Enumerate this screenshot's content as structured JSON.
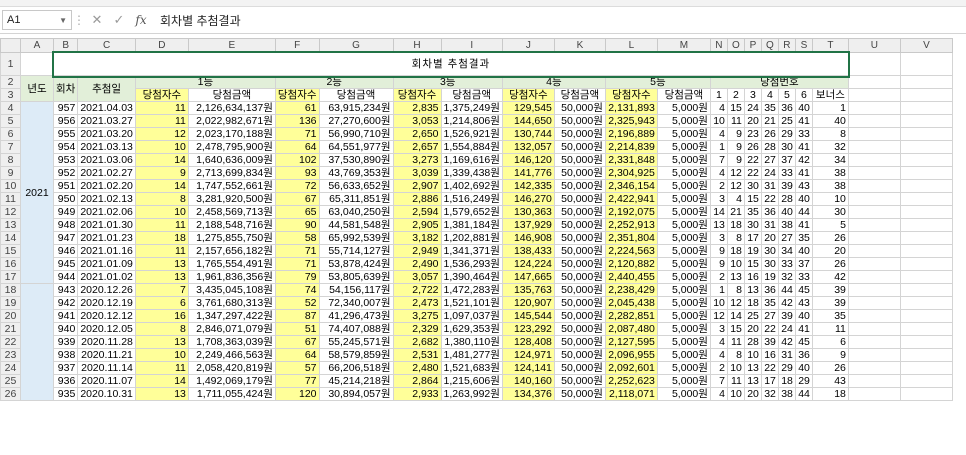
{
  "formula_bar": {
    "cell_ref": "A1",
    "content": "회차별 추첨결과"
  },
  "columns": [
    "A",
    "B",
    "C",
    "D",
    "E",
    "F",
    "G",
    "H",
    "I",
    "J",
    "K",
    "L",
    "M",
    "N",
    "O",
    "P",
    "Q",
    "R",
    "S",
    "T",
    "U",
    "V"
  ],
  "title": "회차별 추첨결과",
  "headers": {
    "year": "년도",
    "round": "회차",
    "date": "추첨일",
    "p1": "1등",
    "p2": "2등",
    "p3": "3등",
    "p4": "4등",
    "p5": "5등",
    "nums": "당첨번호",
    "winners": "당첨자수",
    "amount": "당첨금액",
    "n": [
      "1",
      "2",
      "3",
      "4",
      "5",
      "6"
    ],
    "bonus": "보너스"
  },
  "year_2021": "2021",
  "row_numbers": [
    "1",
    "2",
    "3",
    "4",
    "5",
    "6",
    "7",
    "8",
    "9",
    "10",
    "11",
    "12",
    "13",
    "14",
    "15",
    "16",
    "17",
    "18",
    "19",
    "20",
    "21",
    "22",
    "23",
    "24",
    "25",
    "26"
  ],
  "rows": [
    {
      "round": "957",
      "date": "2021.04.03",
      "w1": "11",
      "a1": "2,126,634,137원",
      "w2": "61",
      "a2": "63,915,234원",
      "w3": "2,835",
      "a3": "1,375,249원",
      "w4": "129,545",
      "a4": "50,000원",
      "w5": "2,131,893",
      "a5": "5,000원",
      "n": [
        "4",
        "15",
        "24",
        "35",
        "36",
        "40"
      ],
      "b": "1"
    },
    {
      "round": "956",
      "date": "2021.03.27",
      "w1": "11",
      "a1": "2,022,982,671원",
      "w2": "136",
      "a2": "27,270,600원",
      "w3": "3,053",
      "a3": "1,214,806원",
      "w4": "144,650",
      "a4": "50,000원",
      "w5": "2,325,943",
      "a5": "5,000원",
      "n": [
        "10",
        "11",
        "20",
        "21",
        "25",
        "41"
      ],
      "b": "40"
    },
    {
      "round": "955",
      "date": "2021.03.20",
      "w1": "12",
      "a1": "2,023,170,188원",
      "w2": "71",
      "a2": "56,990,710원",
      "w3": "2,650",
      "a3": "1,526,921원",
      "w4": "130,744",
      "a4": "50,000원",
      "w5": "2,196,889",
      "a5": "5,000원",
      "n": [
        "4",
        "9",
        "23",
        "26",
        "29",
        "33"
      ],
      "b": "8"
    },
    {
      "round": "954",
      "date": "2021.03.13",
      "w1": "10",
      "a1": "2,478,795,900원",
      "w2": "64",
      "a2": "64,551,977원",
      "w3": "2,657",
      "a3": "1,554,884원",
      "w4": "132,057",
      "a4": "50,000원",
      "w5": "2,214,839",
      "a5": "5,000원",
      "n": [
        "1",
        "9",
        "26",
        "28",
        "30",
        "41"
      ],
      "b": "32"
    },
    {
      "round": "953",
      "date": "2021.03.06",
      "w1": "14",
      "a1": "1,640,636,009원",
      "w2": "102",
      "a2": "37,530,890원",
      "w3": "3,273",
      "a3": "1,169,616원",
      "w4": "146,120",
      "a4": "50,000원",
      "w5": "2,331,848",
      "a5": "5,000원",
      "n": [
        "7",
        "9",
        "22",
        "27",
        "37",
        "42"
      ],
      "b": "34"
    },
    {
      "round": "952",
      "date": "2021.02.27",
      "w1": "9",
      "a1": "2,713,699,834원",
      "w2": "93",
      "a2": "43,769,353원",
      "w3": "3,039",
      "a3": "1,339,438원",
      "w4": "141,776",
      "a4": "50,000원",
      "w5": "2,304,925",
      "a5": "5,000원",
      "n": [
        "4",
        "12",
        "22",
        "24",
        "33",
        "41"
      ],
      "b": "38"
    },
    {
      "round": "951",
      "date": "2021.02.20",
      "w1": "14",
      "a1": "1,747,552,661원",
      "w2": "72",
      "a2": "56,633,652원",
      "w3": "2,907",
      "a3": "1,402,692원",
      "w4": "142,335",
      "a4": "50,000원",
      "w5": "2,346,154",
      "a5": "5,000원",
      "n": [
        "2",
        "12",
        "30",
        "31",
        "39",
        "43"
      ],
      "b": "38"
    },
    {
      "round": "950",
      "date": "2021.02.13",
      "w1": "8",
      "a1": "3,281,920,500원",
      "w2": "67",
      "a2": "65,311,851원",
      "w3": "2,886",
      "a3": "1,516,249원",
      "w4": "146,270",
      "a4": "50,000원",
      "w5": "2,422,941",
      "a5": "5,000원",
      "n": [
        "3",
        "4",
        "15",
        "22",
        "28",
        "40"
      ],
      "b": "10"
    },
    {
      "round": "949",
      "date": "2021.02.06",
      "w1": "10",
      "a1": "2,458,569,713원",
      "w2": "65",
      "a2": "63,040,250원",
      "w3": "2,594",
      "a3": "1,579,652원",
      "w4": "130,363",
      "a4": "50,000원",
      "w5": "2,192,075",
      "a5": "5,000원",
      "n": [
        "14",
        "21",
        "35",
        "36",
        "40",
        "44"
      ],
      "b": "30"
    },
    {
      "round": "948",
      "date": "2021.01.30",
      "w1": "11",
      "a1": "2,188,548,716원",
      "w2": "90",
      "a2": "44,581,548원",
      "w3": "2,905",
      "a3": "1,381,184원",
      "w4": "137,929",
      "a4": "50,000원",
      "w5": "2,252,913",
      "a5": "5,000원",
      "n": [
        "13",
        "18",
        "30",
        "31",
        "38",
        "41"
      ],
      "b": "5"
    },
    {
      "round": "947",
      "date": "2021.01.23",
      "w1": "18",
      "a1": "1,275,855,750원",
      "w2": "58",
      "a2": "65,992,539원",
      "w3": "3,182",
      "a3": "1,202,881원",
      "w4": "146,908",
      "a4": "50,000원",
      "w5": "2,351,804",
      "a5": "5,000원",
      "n": [
        "3",
        "8",
        "17",
        "20",
        "27",
        "35"
      ],
      "b": "26"
    },
    {
      "round": "946",
      "date": "2021.01.16",
      "w1": "11",
      "a1": "2,157,656,182원",
      "w2": "71",
      "a2": "55,714,127원",
      "w3": "2,949",
      "a3": "1,341,371원",
      "w4": "138,433",
      "a4": "50,000원",
      "w5": "2,224,563",
      "a5": "5,000원",
      "n": [
        "9",
        "18",
        "19",
        "30",
        "34",
        "40"
      ],
      "b": "20"
    },
    {
      "round": "945",
      "date": "2021.01.09",
      "w1": "13",
      "a1": "1,765,554,491원",
      "w2": "71",
      "a2": "53,878,424원",
      "w3": "2,490",
      "a3": "1,536,293원",
      "w4": "124,224",
      "a4": "50,000원",
      "w5": "2,120,882",
      "a5": "5,000원",
      "n": [
        "9",
        "10",
        "15",
        "30",
        "33",
        "37"
      ],
      "b": "26"
    },
    {
      "round": "944",
      "date": "2021.01.02",
      "w1": "13",
      "a1": "1,961,836,356원",
      "w2": "79",
      "a2": "53,805,639원",
      "w3": "3,057",
      "a3": "1,390,464원",
      "w4": "147,665",
      "a4": "50,000원",
      "w5": "2,440,455",
      "a5": "5,000원",
      "n": [
        "2",
        "13",
        "16",
        "19",
        "32",
        "33"
      ],
      "b": "42"
    },
    {
      "round": "943",
      "date": "2020.12.26",
      "w1": "7",
      "a1": "3,435,045,108원",
      "w2": "74",
      "a2": "54,156,117원",
      "w3": "2,722",
      "a3": "1,472,283원",
      "w4": "135,763",
      "a4": "50,000원",
      "w5": "2,238,429",
      "a5": "5,000원",
      "n": [
        "1",
        "8",
        "13",
        "36",
        "44",
        "45"
      ],
      "b": "39"
    },
    {
      "round": "942",
      "date": "2020.12.19",
      "w1": "6",
      "a1": "3,761,680,313원",
      "w2": "52",
      "a2": "72,340,007원",
      "w3": "2,473",
      "a3": "1,521,101원",
      "w4": "120,907",
      "a4": "50,000원",
      "w5": "2,045,438",
      "a5": "5,000원",
      "n": [
        "10",
        "12",
        "18",
        "35",
        "42",
        "43"
      ],
      "b": "39"
    },
    {
      "round": "941",
      "date": "2020.12.12",
      "w1": "16",
      "a1": "1,347,297,422원",
      "w2": "87",
      "a2": "41,296,473원",
      "w3": "3,275",
      "a3": "1,097,037원",
      "w4": "145,544",
      "a4": "50,000원",
      "w5": "2,282,851",
      "a5": "5,000원",
      "n": [
        "12",
        "14",
        "25",
        "27",
        "39",
        "40"
      ],
      "b": "35"
    },
    {
      "round": "940",
      "date": "2020.12.05",
      "w1": "8",
      "a1": "2,846,071,079원",
      "w2": "51",
      "a2": "74,407,088원",
      "w3": "2,329",
      "a3": "1,629,353원",
      "w4": "123,292",
      "a4": "50,000원",
      "w5": "2,087,480",
      "a5": "5,000원",
      "n": [
        "3",
        "15",
        "20",
        "22",
        "24",
        "41"
      ],
      "b": "11"
    },
    {
      "round": "939",
      "date": "2020.11.28",
      "w1": "13",
      "a1": "1,708,363,039원",
      "w2": "67",
      "a2": "55,245,571원",
      "w3": "2,682",
      "a3": "1,380,110원",
      "w4": "128,408",
      "a4": "50,000원",
      "w5": "2,127,595",
      "a5": "5,000원",
      "n": [
        "4",
        "11",
        "28",
        "39",
        "42",
        "45"
      ],
      "b": "6"
    },
    {
      "round": "938",
      "date": "2020.11.21",
      "w1": "10",
      "a1": "2,249,466,563원",
      "w2": "64",
      "a2": "58,579,859원",
      "w3": "2,531",
      "a3": "1,481,277원",
      "w4": "124,971",
      "a4": "50,000원",
      "w5": "2,096,955",
      "a5": "5,000원",
      "n": [
        "4",
        "8",
        "10",
        "16",
        "31",
        "36"
      ],
      "b": "9"
    },
    {
      "round": "937",
      "date": "2020.11.14",
      "w1": "11",
      "a1": "2,058,420,819원",
      "w2": "57",
      "a2": "66,206,518원",
      "w3": "2,480",
      "a3": "1,521,683원",
      "w4": "124,141",
      "a4": "50,000원",
      "w5": "2,092,601",
      "a5": "5,000원",
      "n": [
        "2",
        "10",
        "13",
        "22",
        "29",
        "40"
      ],
      "b": "26"
    },
    {
      "round": "936",
      "date": "2020.11.07",
      "w1": "14",
      "a1": "1,492,069,179원",
      "w2": "77",
      "a2": "45,214,218원",
      "w3": "2,864",
      "a3": "1,215,606원",
      "w4": "140,160",
      "a4": "50,000원",
      "w5": "2,252,623",
      "a5": "5,000원",
      "n": [
        "7",
        "11",
        "13",
        "17",
        "18",
        "29"
      ],
      "b": "43"
    },
    {
      "round": "935",
      "date": "2020.10.31",
      "w1": "13",
      "a1": "1,711,055,424원",
      "w2": "120",
      "a2": "30,894,057원",
      "w3": "2,933",
      "a3": "1,263,992원",
      "w4": "134,376",
      "a4": "50,000원",
      "w5": "2,118,071",
      "a5": "5,000원",
      "n": [
        "4",
        "10",
        "20",
        "32",
        "38",
        "44"
      ],
      "b": "18"
    }
  ]
}
